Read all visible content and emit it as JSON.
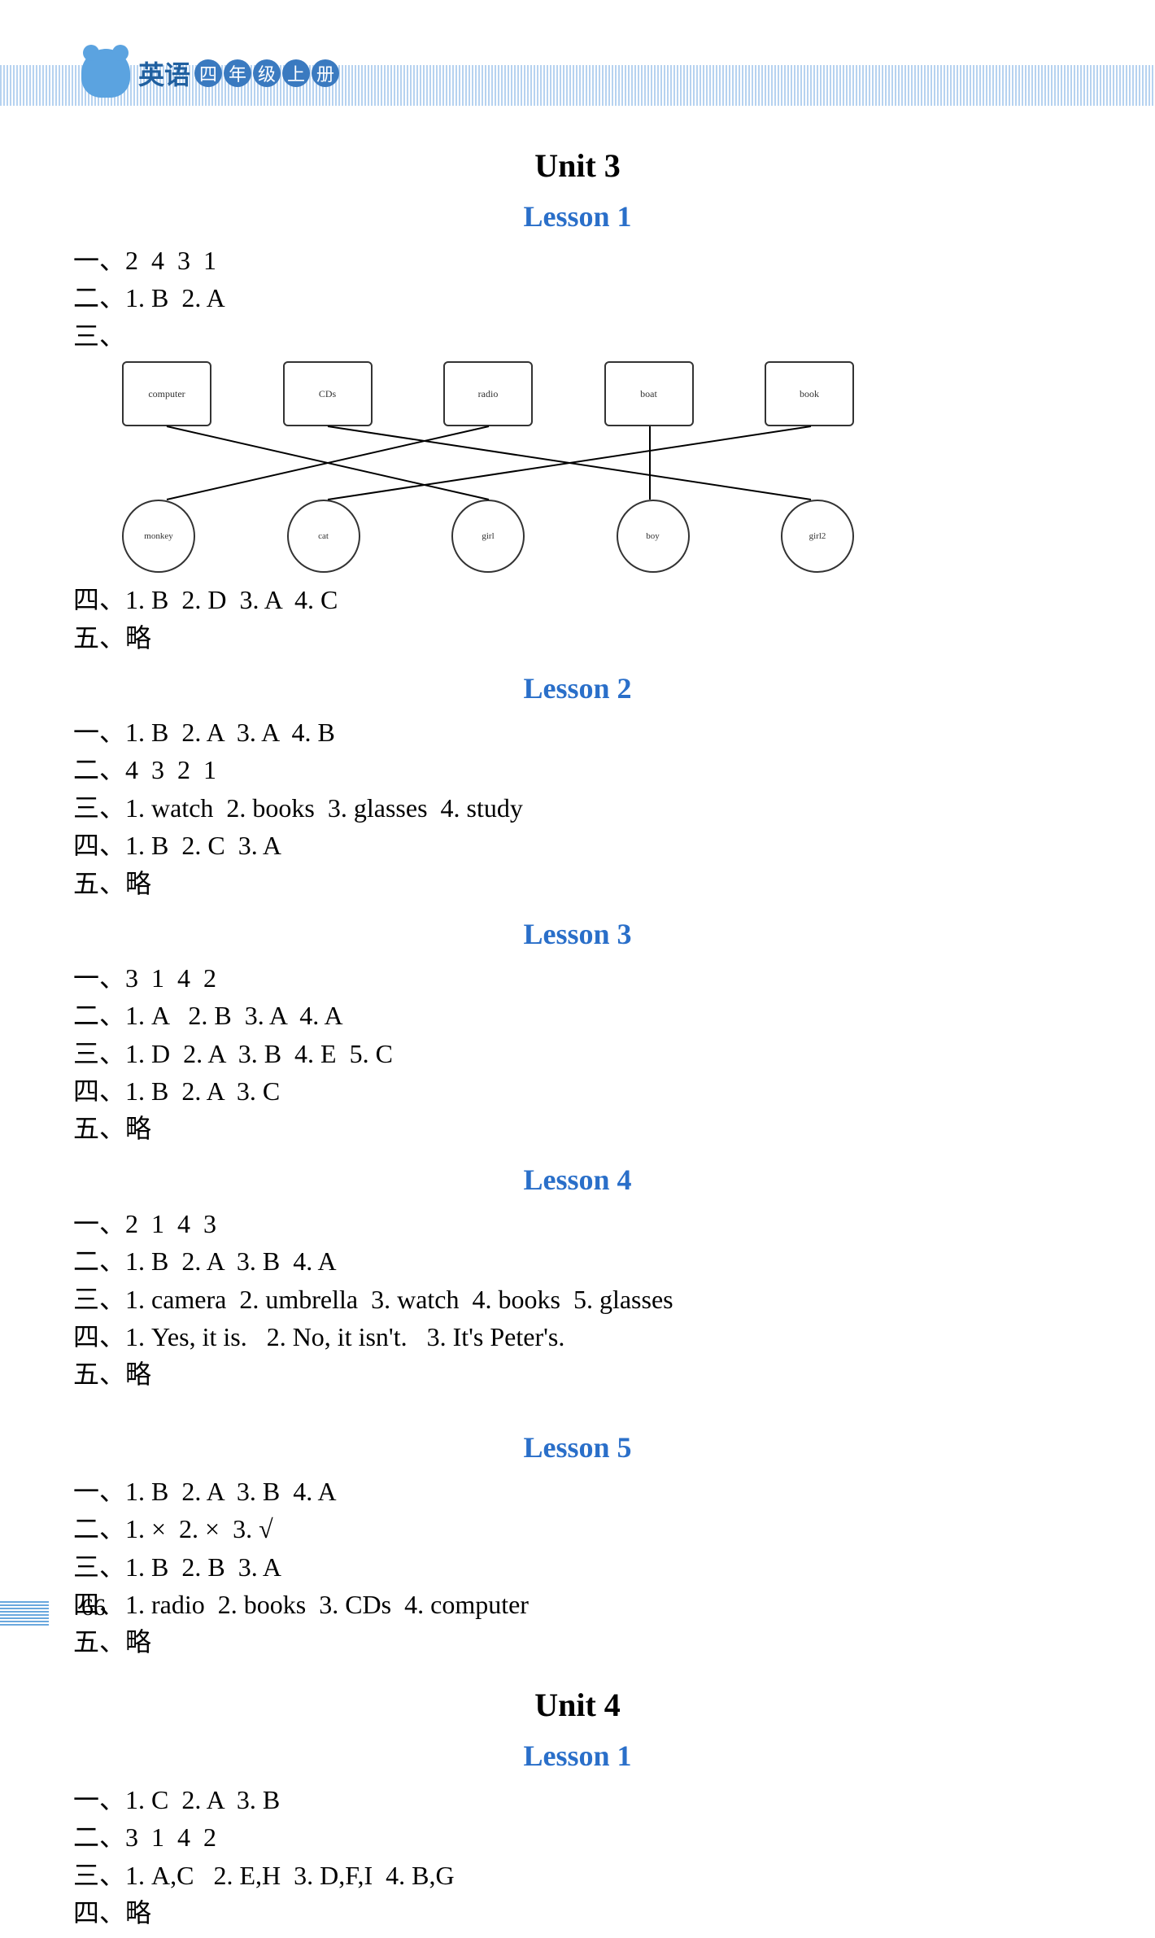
{
  "header": {
    "subject": "英语",
    "grade_chars": [
      "四",
      "年",
      "级",
      "上",
      "册"
    ]
  },
  "page_number": "66",
  "colors": {
    "lesson_title": "#2a6fc9",
    "unit_title": "#000000",
    "text": "#000000",
    "header_blue": "#3a7ac0"
  },
  "sections": [
    {
      "type": "unit",
      "title": "Unit 3"
    },
    {
      "type": "lesson",
      "title": "Lesson 1",
      "lines": [
        "一、2  4  3  1",
        "二、1. B  2. A",
        "三、"
      ],
      "has_matching": true,
      "matching": {
        "top_items": [
          "computer",
          "CDs",
          "radio",
          "boat",
          "book"
        ],
        "bottom_items": [
          "monkey",
          "cat",
          "girl",
          "boy",
          "girl2"
        ],
        "lines": [
          {
            "from": 0,
            "to": 2
          },
          {
            "from": 1,
            "to": 4
          },
          {
            "from": 2,
            "to": 0
          },
          {
            "from": 3,
            "to": 3
          },
          {
            "from": 4,
            "to": 1
          }
        ]
      },
      "lines_after": [
        "四、1. B  2. D  3. A  4. C",
        "五、略"
      ]
    },
    {
      "type": "lesson",
      "title": "Lesson 2",
      "lines": [
        "一、1. B  2. A  3. A  4. B",
        "二、4  3  2  1",
        "三、1. watch  2. books  3. glasses  4. study",
        "四、1. B  2. C  3. A",
        "五、略"
      ]
    },
    {
      "type": "lesson",
      "title": "Lesson 3",
      "lines": [
        "一、3  1  4  2",
        "二、1. A   2. B  3. A  4. A",
        "三、1. D  2. A  3. B  4. E  5. C",
        "四、1. B  2. A  3. C",
        "五、略"
      ]
    },
    {
      "type": "lesson",
      "title": "Lesson 4",
      "lines": [
        "一、2  1  4  3",
        "二、1. B  2. A  3. B  4. A",
        "三、1. camera  2. umbrella  3. watch  4. books  5. glasses",
        "四、1. Yes, it is.   2. No, it isn't.   3. It's Peter's.",
        "五、略"
      ]
    },
    {
      "type": "lesson",
      "title": "Lesson 5",
      "extra_gap": true,
      "lines": [
        "一、1. B  2. A  3. B  4. A",
        "二、1. ×  2. ×  3. √",
        "三、1. B  2. B  3. A",
        "四、1. radio  2. books  3. CDs  4. computer",
        "五、略"
      ]
    },
    {
      "type": "unit",
      "title": "Unit 4"
    },
    {
      "type": "lesson",
      "title": "Lesson 1",
      "lines": [
        "一、1. C  2. A  3. B",
        "二、3  1  4  2",
        "三、1. A,C   2. E,H  3. D,F,I  4. B,G",
        "四、略"
      ]
    }
  ]
}
